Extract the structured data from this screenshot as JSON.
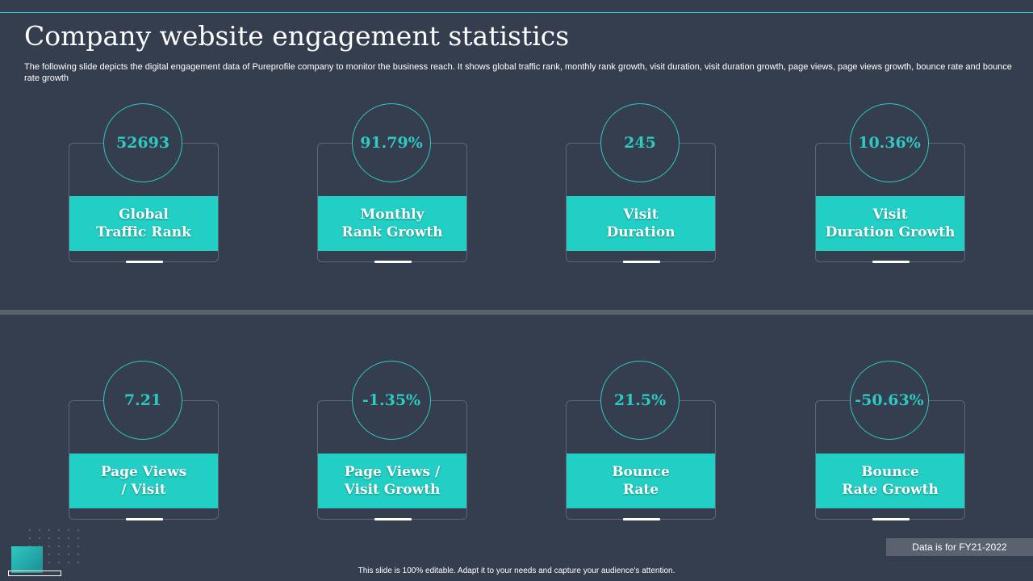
{
  "slide": {
    "title": "Company website engagement statistics",
    "subtitle": "The following slide depicts the digital engagement data of Pureprofile company to monitor the business reach. It shows global traffic rank, monthly rank growth, visit duration, visit duration growth, page views, page views growth, bounce rate and bounce rate growth"
  },
  "metrics": [
    {
      "value": "52693",
      "label": "Global\nTraffic Rank"
    },
    {
      "value": "91.79%",
      "label": "Monthly\nRank Growth"
    },
    {
      "value": "245",
      "label": "Visit\nDuration"
    },
    {
      "value": "10.36%",
      "label": "Visit\nDuration Growth"
    },
    {
      "value": "7.21",
      "label": "Page Views\n/ Visit"
    },
    {
      "value": "-1.35%",
      "label": "Page Views /\nVisit Growth"
    },
    {
      "value": "21.5%",
      "label": "Bounce\nRate"
    },
    {
      "value": "-50.63%",
      "label": "Bounce\nRate Growth"
    }
  ],
  "data_note": "Data is for FY21-2022",
  "footer": "This slide is 100% editable. Adapt it to your needs and capture your audience's attention.",
  "colors": {
    "background": "#353e4e",
    "accent": "#22cfc4",
    "value_text": "#2ec9c2",
    "card_border": "#5c6675",
    "divider": "#5a6270"
  }
}
